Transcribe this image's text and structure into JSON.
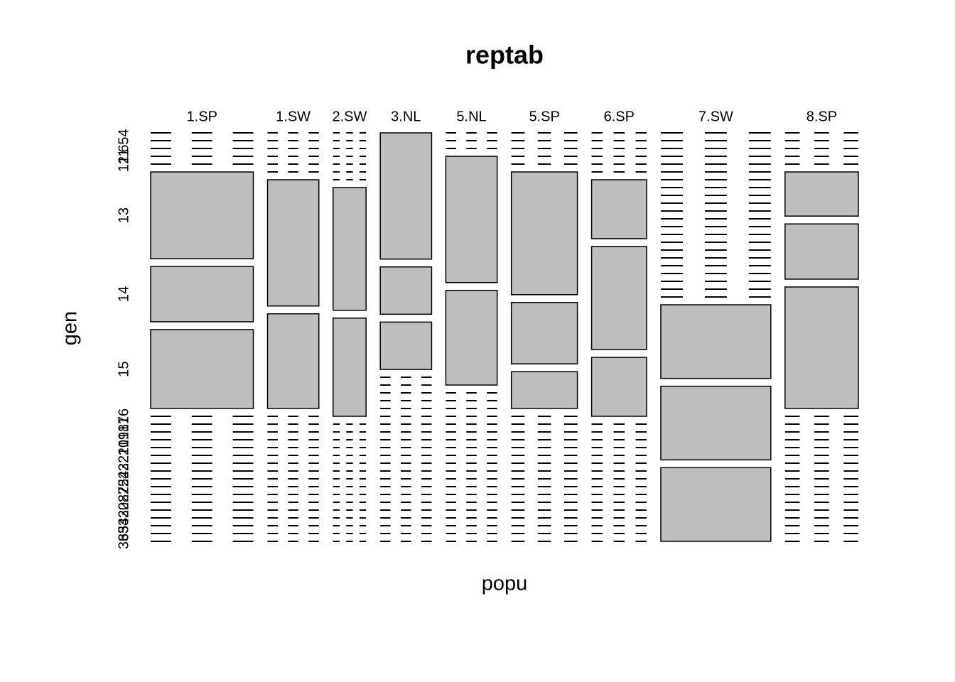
{
  "chart_data": {
    "type": "mosaic",
    "title": "reptab",
    "x_label": "popu",
    "y_label": "gen",
    "categories": [
      "1.SP",
      "1.SW",
      "2.SW",
      "3.NL",
      "5.NL",
      "5.SP",
      "6.SP",
      "7.SW",
      "8.SP"
    ],
    "y_categories": [
      "4",
      "5",
      "6",
      "11",
      "12",
      "13",
      "14",
      "15",
      "16",
      "17",
      "18",
      "19",
      "20",
      "21",
      "22",
      "23",
      "24",
      "25",
      "27",
      "28",
      "30",
      "32",
      "34",
      "35",
      "36"
    ],
    "values": [
      [
        0,
        0,
        0,
        0,
        0,
        11,
        7,
        10,
        0,
        0,
        0,
        0,
        0,
        0,
        0,
        0,
        0,
        0,
        0,
        0,
        0,
        0,
        0,
        0,
        0
      ],
      [
        0,
        0,
        0,
        0,
        0,
        0,
        8,
        6,
        0,
        0,
        0,
        0,
        0,
        0,
        0,
        0,
        0,
        0,
        0,
        0,
        0,
        0,
        0,
        0,
        0
      ],
      [
        0,
        0,
        0,
        0,
        0,
        0,
        0,
        5,
        4,
        0,
        0,
        0,
        0,
        0,
        0,
        0,
        0,
        0,
        0,
        0,
        0,
        0,
        0,
        0,
        0
      ],
      [
        8,
        3,
        3,
        0,
        0,
        0,
        0,
        0,
        0,
        0,
        0,
        0,
        0,
        0,
        0,
        0,
        0,
        0,
        0,
        0,
        0,
        0,
        0,
        0,
        0
      ],
      [
        0,
        0,
        0,
        8,
        6,
        0,
        0,
        0,
        0,
        0,
        0,
        0,
        0,
        0,
        0,
        0,
        0,
        0,
        0,
        0,
        0,
        0,
        0,
        0,
        0
      ],
      [
        0,
        0,
        0,
        0,
        0,
        10,
        5,
        3,
        0,
        0,
        0,
        0,
        0,
        0,
        0,
        0,
        0,
        0,
        0,
        0,
        0,
        0,
        0,
        0,
        0
      ],
      [
        0,
        0,
        0,
        0,
        0,
        0,
        4,
        7,
        4,
        0,
        0,
        0,
        0,
        0,
        0,
        0,
        0,
        0,
        0,
        0,
        0,
        0,
        0,
        0,
        0
      ],
      [
        0,
        0,
        0,
        0,
        0,
        0,
        0,
        0,
        0,
        0,
        0,
        0,
        0,
        0,
        0,
        0,
        0,
        0,
        0,
        0,
        0,
        0,
        10,
        10,
        10
      ],
      [
        0,
        0,
        0,
        0,
        0,
        4,
        5,
        11,
        0,
        0,
        0,
        0,
        0,
        0,
        0,
        0,
        0,
        0,
        0,
        0,
        0,
        0,
        0,
        0,
        0
      ]
    ],
    "color": "#bebebe"
  }
}
